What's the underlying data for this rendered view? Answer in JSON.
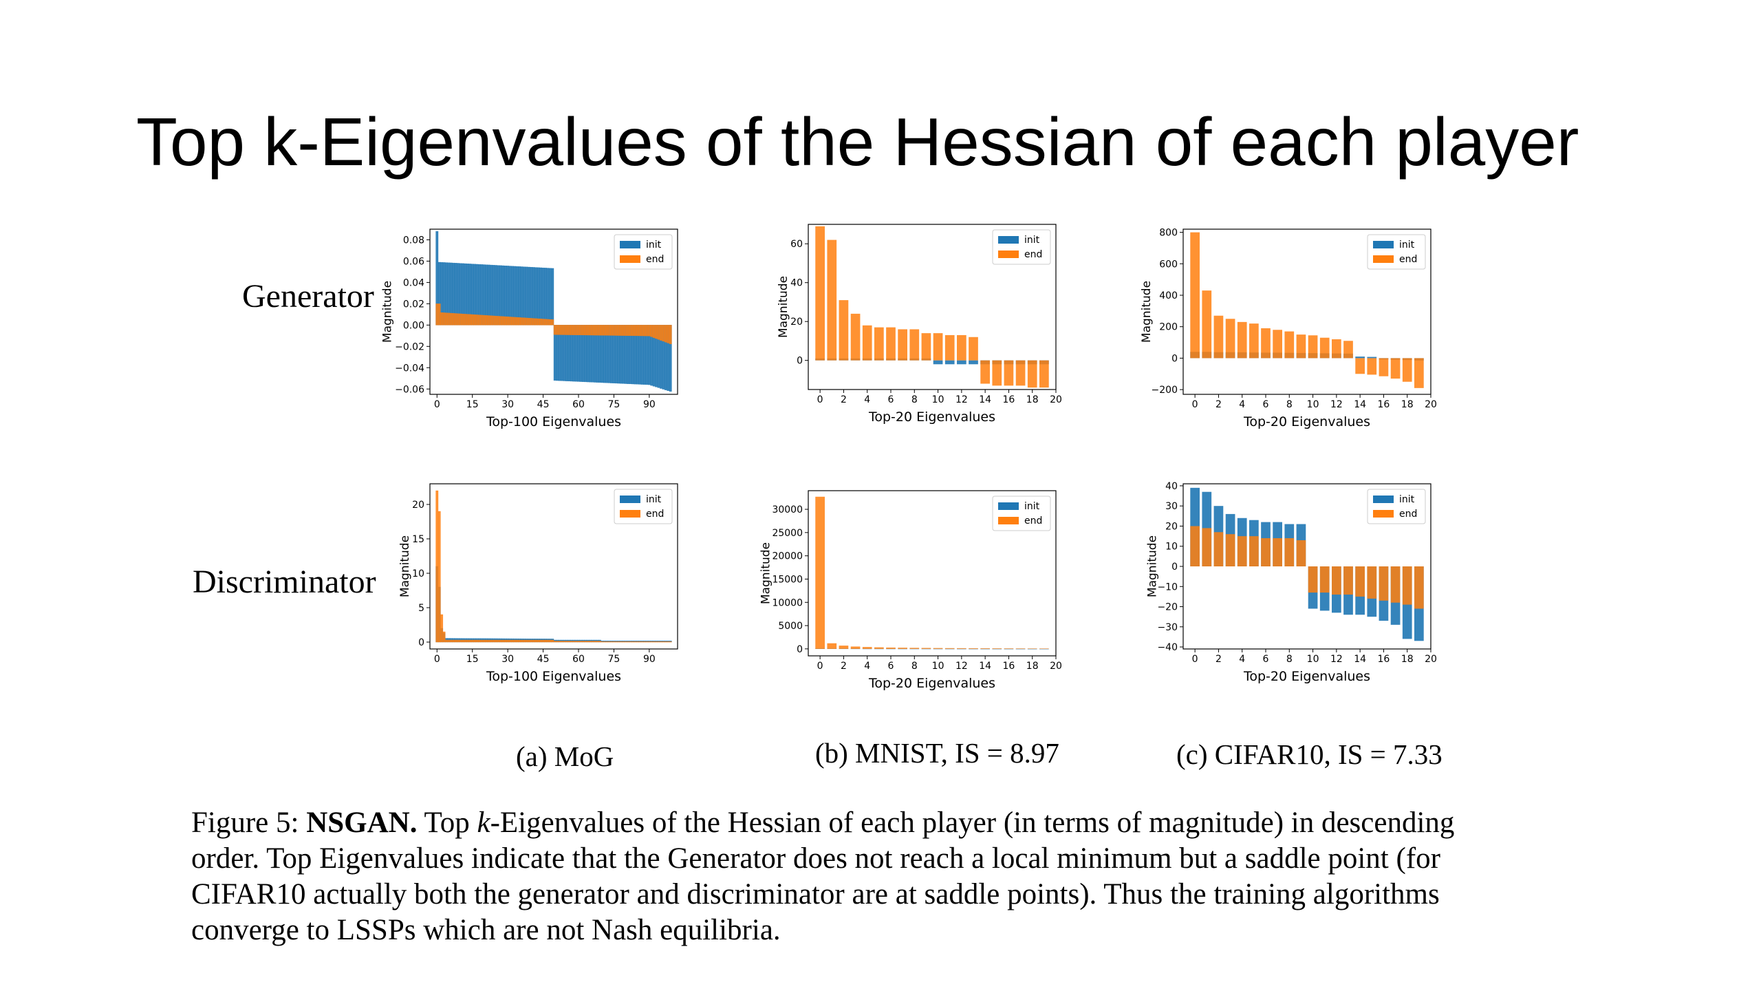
{
  "slide_title": "Top k-Eigenvalues of the Hessian of each player",
  "row_labels": {
    "generator": "Generator",
    "discriminator": "Discriminator"
  },
  "subfigure_labels": [
    "(a) MoG",
    "(b) MNIST, IS = 8.97",
    "(c) CIFAR10, IS = 7.33"
  ],
  "caption": {
    "prefix": "Figure 5: ",
    "bold": "NSGAN.",
    "part1": " Top ",
    "k": "k",
    "part2": "-Eigenvalues of the Hessian of each player (in terms of magnitude) in descending order. Top Eigenvalues indicate that the Generator does not reach a local minimum but a saddle point (for CIFAR10 actually both the generator and discriminator are at saddle points). Thus the training algorithms converge to LSSPs which are not Nash equilibria."
  },
  "colors": {
    "init": "#1f77b4",
    "end": "#ff7f0e"
  },
  "chart_data": [
    {
      "type": "bar",
      "panel": "mog-generator",
      "xlabel": "Top-100 Eigenvalues",
      "ylabel": "Magnitude",
      "xlim": [
        -3,
        102
      ],
      "ylim": [
        -0.065,
        0.09
      ],
      "xticks": [
        0,
        15,
        30,
        45,
        60,
        75,
        90
      ],
      "xtick_labels": [
        "0",
        "15",
        "30",
        "45",
        "60",
        "75",
        "90"
      ],
      "yticks": [
        -0.06,
        -0.04,
        -0.02,
        0.0,
        0.02,
        0.04,
        0.06,
        0.08
      ],
      "ytick_labels": [
        "−0.06",
        "−0.04",
        "−0.02",
        "0.00",
        "0.02",
        "0.04",
        "0.06",
        "0.08"
      ],
      "legend": [
        "init",
        "end"
      ],
      "legend_position": "top-right",
      "generator": "mog_gen",
      "series": [
        {
          "name": "init"
        },
        {
          "name": "end"
        }
      ]
    },
    {
      "type": "bar",
      "panel": "mnist-generator",
      "xlabel": "Top-20 Eigenvalues",
      "ylabel": "Magnitude",
      "xlim": [
        -1,
        20
      ],
      "ylim": [
        -15,
        70
      ],
      "xticks": [
        0,
        2,
        4,
        6,
        8,
        10,
        12,
        14,
        16,
        18,
        20
      ],
      "xtick_labels": [
        "0",
        "2",
        "4",
        "6",
        "8",
        "10",
        "12",
        "14",
        "16",
        "18",
        "20"
      ],
      "yticks": [
        0,
        20,
        40,
        60
      ],
      "ytick_labels": [
        "0",
        "20",
        "40",
        "60"
      ],
      "legend": [
        "init",
        "end"
      ],
      "legend_position": "top-right",
      "series": [
        {
          "name": "init",
          "values": [
            1,
            1,
            1,
            1,
            1,
            1,
            1,
            1,
            1,
            1,
            -2,
            -2,
            -2,
            -2,
            -2,
            -2,
            -2,
            -2,
            -2,
            -2
          ]
        },
        {
          "name": "end",
          "values": [
            69,
            62,
            31,
            24,
            18,
            17,
            17,
            16,
            16,
            14,
            14,
            13,
            13,
            12,
            -12,
            -13,
            -13,
            -13,
            -14,
            -14
          ]
        }
      ]
    },
    {
      "type": "bar",
      "panel": "cifar-generator",
      "xlabel": "Top-20 Eigenvalues",
      "ylabel": "Magnitude",
      "xlim": [
        -1,
        20
      ],
      "ylim": [
        -230,
        820
      ],
      "xticks": [
        0,
        2,
        4,
        6,
        8,
        10,
        12,
        14,
        16,
        18,
        20
      ],
      "xtick_labels": [
        "0",
        "2",
        "4",
        "6",
        "8",
        "10",
        "12",
        "14",
        "16",
        "18",
        "20"
      ],
      "yticks": [
        -200,
        0,
        200,
        400,
        600,
        800
      ],
      "ytick_labels": [
        "−200",
        "0",
        "200",
        "400",
        "600",
        "800"
      ],
      "legend": [
        "init",
        "end"
      ],
      "legend_position": "top-right",
      "series": [
        {
          "name": "init",
          "values": [
            40,
            40,
            38,
            38,
            37,
            36,
            35,
            35,
            34,
            33,
            32,
            31,
            30,
            29,
            10,
            8,
            -8,
            -10,
            -12,
            -15
          ]
        },
        {
          "name": "end",
          "values": [
            800,
            430,
            270,
            250,
            230,
            220,
            190,
            180,
            170,
            150,
            145,
            130,
            120,
            110,
            -100,
            -105,
            -115,
            -130,
            -150,
            -190
          ]
        }
      ]
    },
    {
      "type": "bar",
      "panel": "mog-discriminator",
      "xlabel": "Top-100 Eigenvalues",
      "ylabel": "Magnitude",
      "xlim": [
        -3,
        102
      ],
      "ylim": [
        -1,
        23
      ],
      "xticks": [
        0,
        15,
        30,
        45,
        60,
        75,
        90
      ],
      "xtick_labels": [
        "0",
        "15",
        "30",
        "45",
        "60",
        "75",
        "90"
      ],
      "yticks": [
        0,
        5,
        10,
        15,
        20
      ],
      "ytick_labels": [
        "0",
        "5",
        "10",
        "15",
        "20"
      ],
      "legend": [
        "init",
        "end"
      ],
      "legend_position": "top-right",
      "generator": "mog_disc",
      "series": [
        {
          "name": "init"
        },
        {
          "name": "end"
        }
      ]
    },
    {
      "type": "bar",
      "panel": "mnist-discriminator",
      "xlabel": "Top-20 Eigenvalues",
      "ylabel": "Magnitude",
      "xlim": [
        -1,
        20
      ],
      "ylim": [
        -1500,
        34000
      ],
      "xticks": [
        0,
        2,
        4,
        6,
        8,
        10,
        12,
        14,
        16,
        18,
        20
      ],
      "xtick_labels": [
        "0",
        "2",
        "4",
        "6",
        "8",
        "10",
        "12",
        "14",
        "16",
        "18",
        "20"
      ],
      "yticks": [
        0,
        5000,
        10000,
        15000,
        20000,
        25000,
        30000
      ],
      "ytick_labels": [
        "0",
        "5000",
        "10000",
        "15000",
        "20000",
        "25000",
        "30000"
      ],
      "legend": [
        "init",
        "end"
      ],
      "legend_position": "top-right",
      "series": [
        {
          "name": "init",
          "values": [
            120,
            80,
            60,
            50,
            40,
            35,
            30,
            28,
            26,
            24,
            22,
            20,
            18,
            16,
            14,
            12,
            10,
            10,
            9,
            8
          ]
        },
        {
          "name": "end",
          "values": [
            32700,
            1200,
            700,
            500,
            400,
            330,
            280,
            250,
            220,
            200,
            180,
            160,
            150,
            140,
            130,
            120,
            110,
            100,
            90,
            80
          ]
        }
      ]
    },
    {
      "type": "bar",
      "panel": "cifar-discriminator",
      "xlabel": "Top-20 Eigenvalues",
      "ylabel": "Magnitude",
      "xlim": [
        -1,
        20
      ],
      "ylim": [
        -41,
        41
      ],
      "xticks": [
        0,
        2,
        4,
        6,
        8,
        10,
        12,
        14,
        16,
        18,
        20
      ],
      "xtick_labels": [
        "0",
        "2",
        "4",
        "6",
        "8",
        "10",
        "12",
        "14",
        "16",
        "18",
        "20"
      ],
      "yticks": [
        -40,
        -30,
        -20,
        -10,
        0,
        10,
        20,
        30,
        40
      ],
      "ytick_labels": [
        "−40",
        "−30",
        "−20",
        "−10",
        "0",
        "10",
        "20",
        "30",
        "40"
      ],
      "legend": [
        "init",
        "end"
      ],
      "legend_position": "top-right",
      "series": [
        {
          "name": "init",
          "values": [
            39,
            37,
            30,
            26,
            24,
            23,
            22,
            22,
            21,
            21,
            -21,
            -22,
            -23,
            -24,
            -24,
            -25,
            -27,
            -29,
            -36,
            -37
          ]
        },
        {
          "name": "end",
          "values": [
            20,
            19,
            17,
            16,
            15,
            15,
            14,
            14,
            14,
            13,
            -13,
            -13,
            -14,
            -14,
            -15,
            -16,
            -17,
            -18,
            -19,
            -21
          ]
        }
      ]
    }
  ]
}
